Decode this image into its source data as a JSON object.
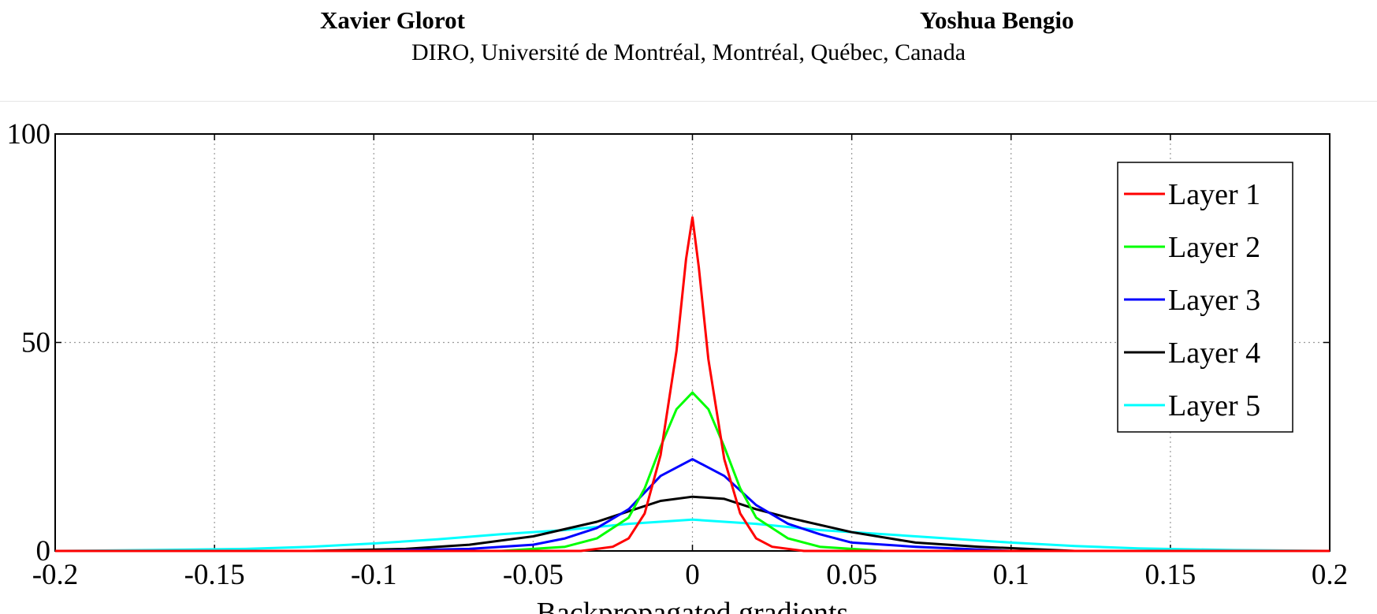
{
  "header": {
    "authors": [
      "Xavier Glorot",
      "Yoshua Bengio"
    ],
    "affiliation": "DIRO, Université de Montréal, Montréal, Québec, Canada"
  },
  "chart_data": {
    "type": "line",
    "title": "",
    "xlabel": "Backpropagated gradients",
    "ylabel": "",
    "xlim": [
      -0.2,
      0.2
    ],
    "ylim": [
      0,
      100
    ],
    "xticks": [
      -0.2,
      -0.15,
      -0.1,
      -0.05,
      0,
      0.05,
      0.1,
      0.15,
      0.2
    ],
    "xtick_labels": [
      "-0.2",
      "-0.15",
      "-0.1",
      "-0.05",
      "0",
      "0.05",
      "0.1",
      "0.15",
      "0.2"
    ],
    "yticks": [
      0,
      50,
      100
    ],
    "ytick_labels": [
      "0",
      "50",
      "100"
    ],
    "grid": true,
    "legend_position": "top-right",
    "series": [
      {
        "name": "Layer 1",
        "color": "#ff0000",
        "x": [
          -0.2,
          -0.035,
          -0.025,
          -0.02,
          -0.015,
          -0.01,
          -0.005,
          -0.002,
          0,
          0.002,
          0.005,
          0.01,
          0.015,
          0.02,
          0.025,
          0.035,
          0.2
        ],
        "y": [
          0,
          0,
          1,
          3,
          9,
          23,
          48,
          70,
          80,
          68,
          46,
          22,
          9,
          3,
          1,
          0,
          0
        ]
      },
      {
        "name": "Layer 2",
        "color": "#00ff00",
        "x": [
          -0.2,
          -0.06,
          -0.04,
          -0.03,
          -0.02,
          -0.015,
          -0.01,
          -0.005,
          0,
          0.005,
          0.01,
          0.015,
          0.02,
          0.03,
          0.04,
          0.06,
          0.2
        ],
        "y": [
          0,
          0,
          1,
          3,
          8,
          15,
          25,
          34,
          38,
          34,
          25,
          15,
          8,
          3,
          1,
          0,
          0
        ]
      },
      {
        "name": "Layer 3",
        "color": "#0000ff",
        "x": [
          -0.2,
          -0.1,
          -0.07,
          -0.05,
          -0.04,
          -0.03,
          -0.02,
          -0.01,
          0,
          0.01,
          0.02,
          0.03,
          0.04,
          0.05,
          0.07,
          0.1,
          0.2
        ],
        "y": [
          0,
          0,
          0.5,
          1.5,
          3,
          5.5,
          10,
          18,
          22,
          18,
          11,
          6.5,
          4,
          2,
          1,
          0,
          0
        ]
      },
      {
        "name": "Layer 4",
        "color": "#000000",
        "x": [
          -0.2,
          -0.12,
          -0.09,
          -0.07,
          -0.05,
          -0.03,
          -0.02,
          -0.01,
          0,
          0.01,
          0.02,
          0.03,
          0.05,
          0.07,
          0.09,
          0.12,
          0.2
        ],
        "y": [
          0,
          0,
          0.5,
          1.5,
          3.5,
          7,
          9.5,
          12,
          13,
          12.5,
          10,
          8,
          4.5,
          2,
          1,
          0,
          0
        ]
      },
      {
        "name": "Layer 5",
        "color": "#00ffff",
        "x": [
          -0.2,
          -0.17,
          -0.14,
          -0.12,
          -0.1,
          -0.08,
          -0.06,
          -0.04,
          -0.02,
          0,
          0.02,
          0.04,
          0.06,
          0.08,
          0.1,
          0.12,
          0.14,
          0.17,
          0.2
        ],
        "y": [
          0,
          0.2,
          0.5,
          1,
          1.8,
          2.8,
          4,
          5,
          6.5,
          7.5,
          6.5,
          5,
          4,
          3,
          2,
          1.2,
          0.6,
          0.2,
          0
        ]
      }
    ]
  }
}
